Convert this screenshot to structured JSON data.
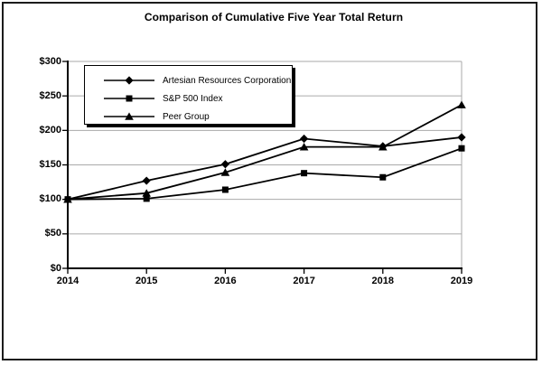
{
  "title": "Comparison of Cumulative Five Year Total Return",
  "chart_data": {
    "type": "line",
    "x": [
      2014,
      2015,
      2016,
      2017,
      2018,
      2019
    ],
    "xtick_labels": [
      "2014",
      "2015",
      "2016",
      "2017",
      "2018",
      "2019"
    ],
    "ytick_labels": [
      "$0",
      "$50",
      "$100",
      "$150",
      "$200",
      "$250",
      "$300"
    ],
    "ylim": [
      0,
      300
    ],
    "ytick_step": 50,
    "grid": "horizontal",
    "legend_position": "inside-top-left",
    "series": [
      {
        "name": "Artesian Resources Corporation",
        "marker": "diamond",
        "values": [
          100,
          127,
          151,
          188,
          177,
          190
        ]
      },
      {
        "name": "S&P 500 Index",
        "marker": "square",
        "values": [
          100,
          101,
          114,
          138,
          132,
          174
        ]
      },
      {
        "name": "Peer Group",
        "marker": "triangle",
        "values": [
          100,
          109,
          139,
          176,
          176,
          237
        ]
      }
    ],
    "colors": {
      "line": "#000000",
      "marker": "#000000",
      "grid": "#aaaaaa",
      "axis": "#000000",
      "background": "#ffffff",
      "frame_border": "#1c1c1c"
    }
  }
}
